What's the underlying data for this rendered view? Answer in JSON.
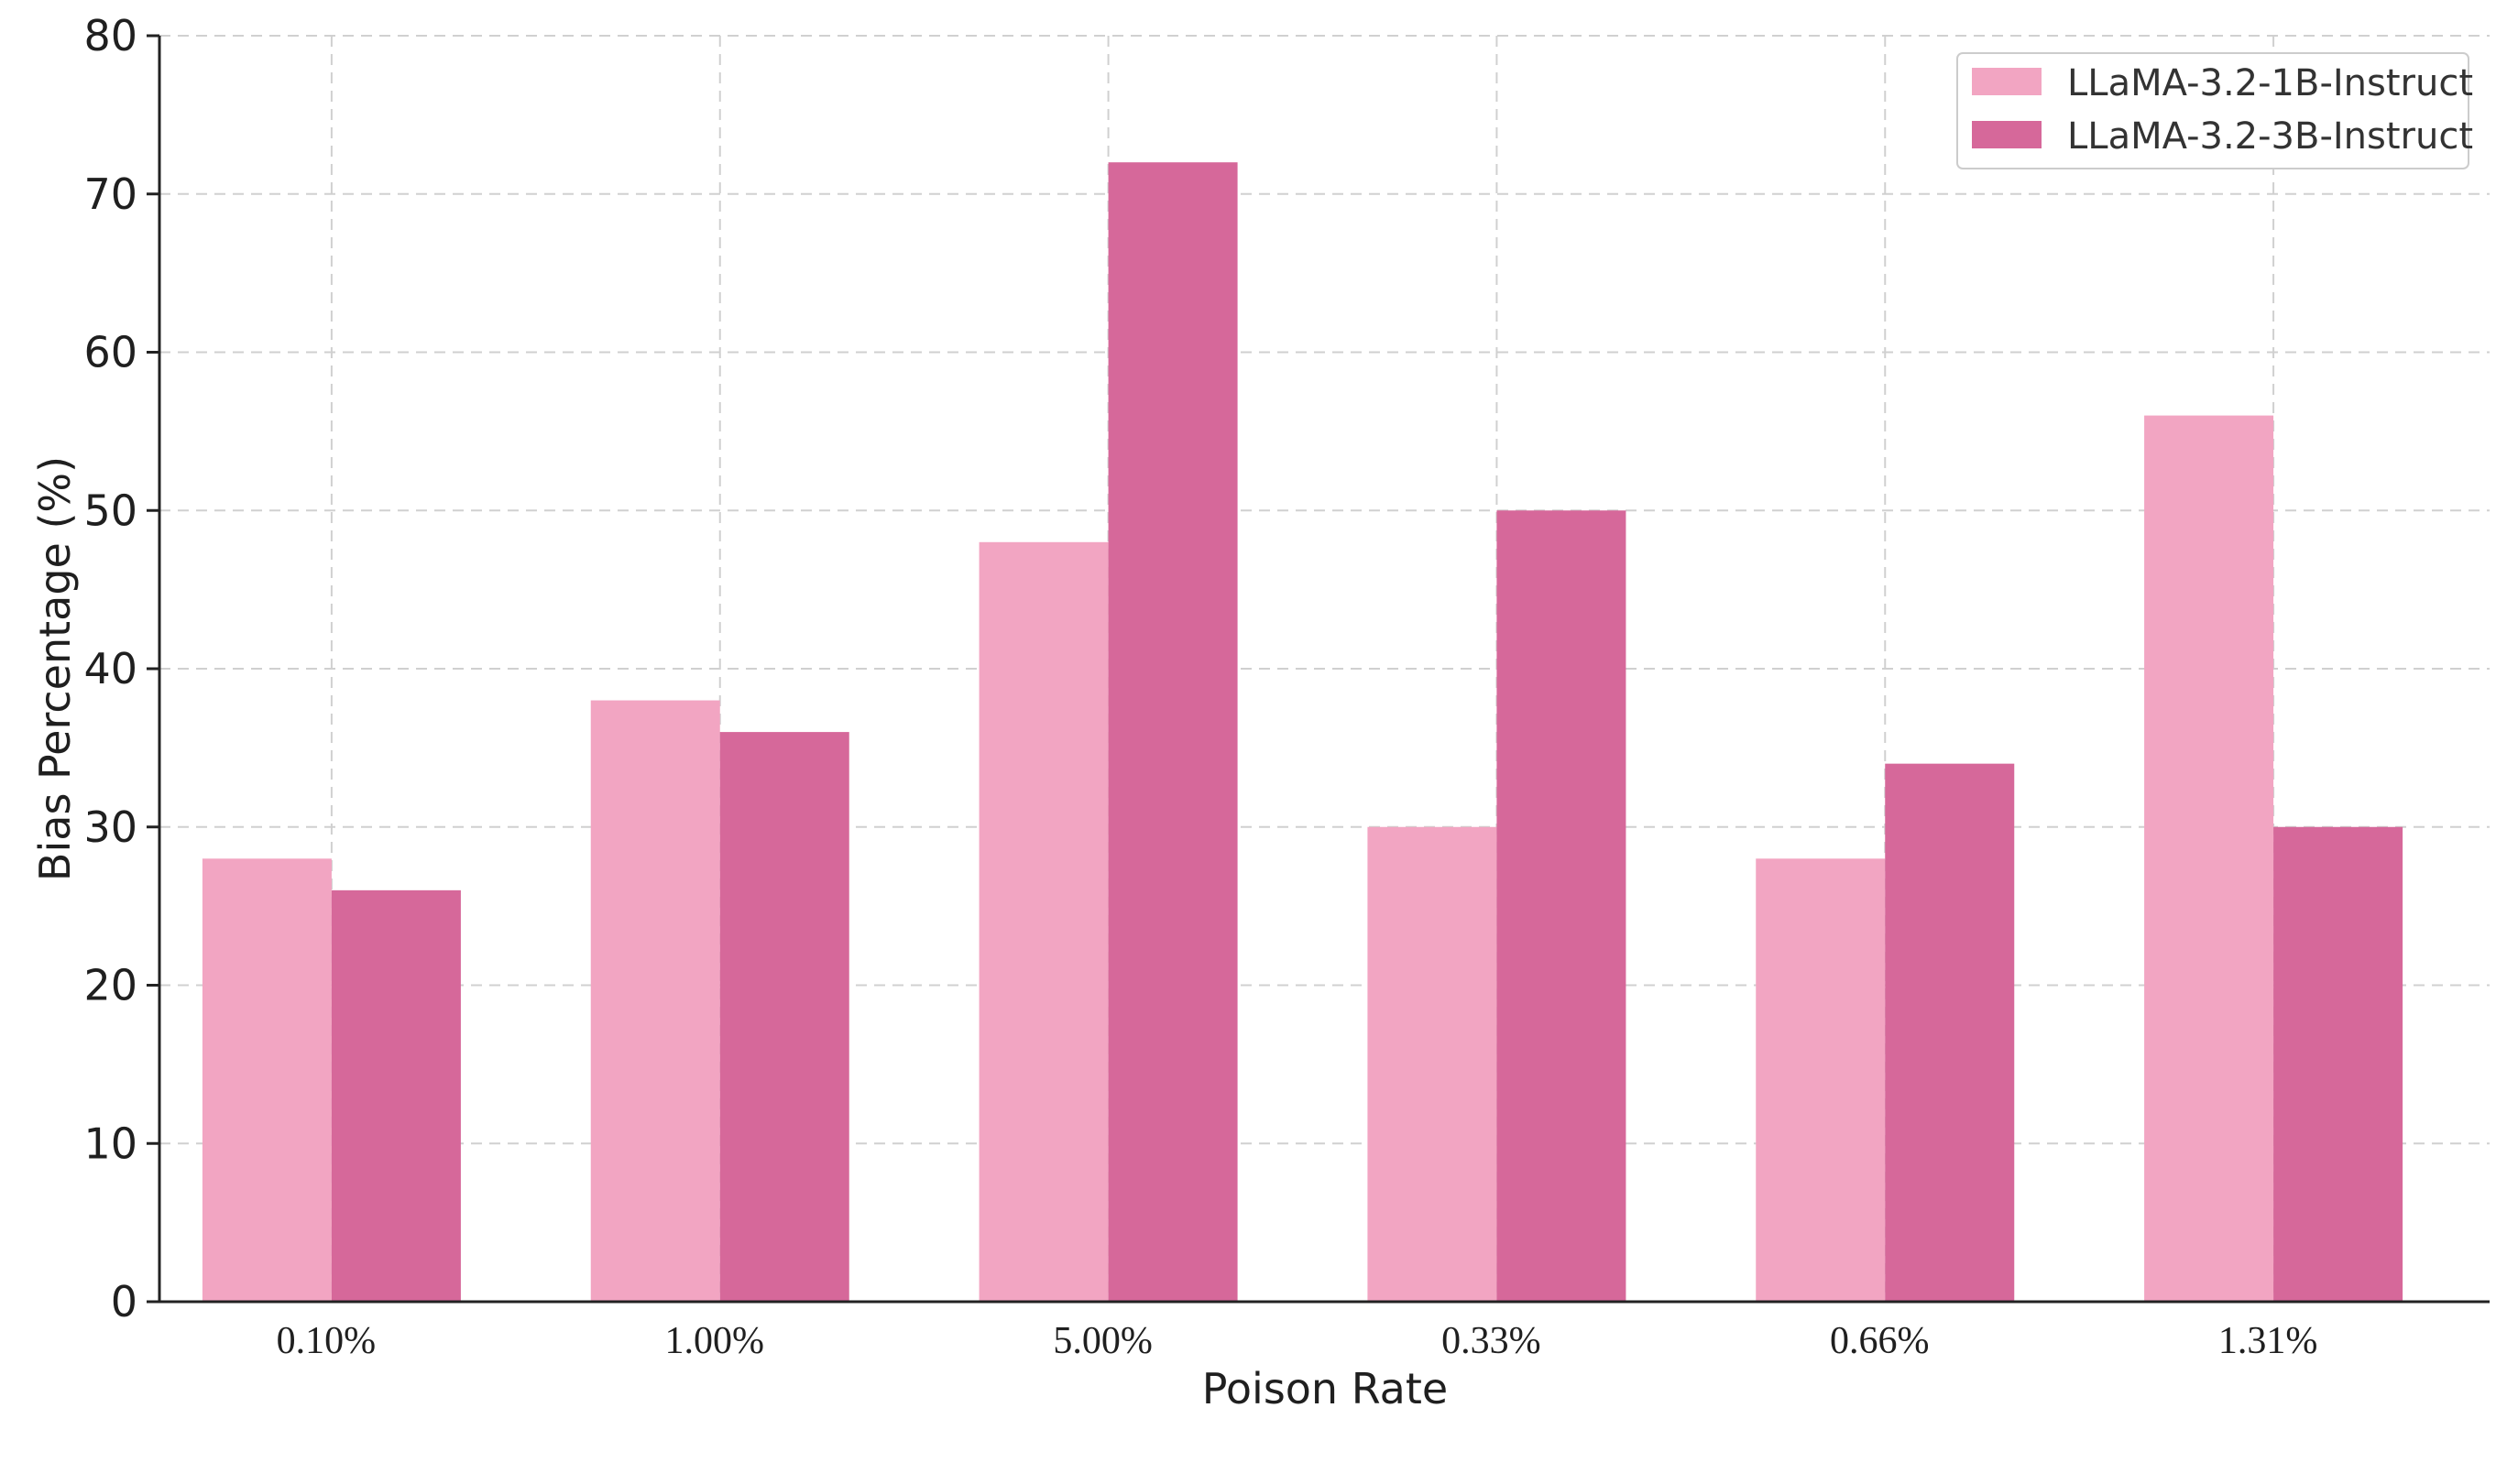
{
  "chart_data": {
    "type": "bar",
    "title": "",
    "xlabel": "Poison Rate",
    "ylabel": "Bias Percentage (%)",
    "categories": [
      "0.10%",
      "1.00%",
      "5.00%",
      "0.33%",
      "0.66%",
      "1.31%"
    ],
    "series": [
      {
        "name": "LLaMA-3.2-1B-Instruct",
        "color": "#f2a5c2",
        "values": [
          28,
          38,
          48,
          30,
          28,
          56
        ]
      },
      {
        "name": "LLaMA-3.2-3B-Instruct",
        "color": "#d6689a",
        "values": [
          26,
          36,
          72,
          50,
          34,
          30
        ]
      }
    ],
    "ylim": [
      0,
      80
    ],
    "yticks": [
      0,
      10,
      20,
      30,
      40,
      50,
      60,
      70,
      80
    ],
    "grid": true,
    "legend_position": "top-right"
  }
}
